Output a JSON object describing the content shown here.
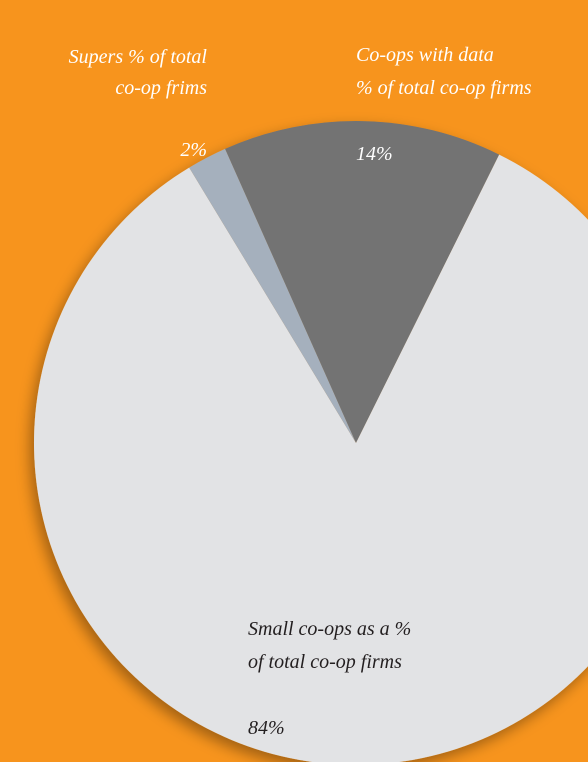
{
  "chart_data": {
    "type": "pie",
    "categories": [
      "Co-ops with data\n% of total co-op firms",
      "Small co-ops as a %\nof total co-op firms",
      "Supers % of total\nco-op frims"
    ],
    "values": [
      14,
      84,
      2
    ],
    "value_labels": [
      "14%",
      "84%",
      "2%"
    ],
    "colors": [
      "#737373",
      "#e2e3e5",
      "#a5b0bd"
    ],
    "background": "#f7941d"
  }
}
